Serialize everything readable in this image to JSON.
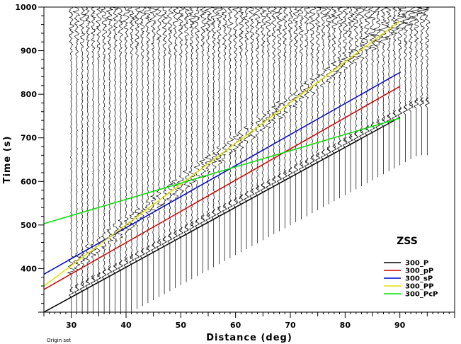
{
  "chart_data": {
    "type": "line",
    "title": "",
    "xlabel": "Distance (deg)",
    "ylabel": "Time (s)",
    "xlim": [
      25,
      100
    ],
    "ylim": [
      300,
      1000
    ],
    "x_ticks": [
      30,
      40,
      50,
      60,
      70,
      80,
      90
    ],
    "y_ticks": [
      400,
      500,
      600,
      700,
      800,
      900,
      1000
    ],
    "legend_title": "ZSS",
    "legend_position": "bottom-right",
    "footnote": "Origin set",
    "series": [
      {
        "name": "300_P",
        "color": "#000000",
        "x": [
          25,
          90
        ],
        "y": [
          300,
          747
        ]
      },
      {
        "name": "300_pP",
        "color": "#d00000",
        "x": [
          25,
          90
        ],
        "y": [
          352,
          818
        ]
      },
      {
        "name": "300_sP",
        "color": "#0000d0",
        "x": [
          25,
          90
        ],
        "y": [
          387,
          850
        ]
      },
      {
        "name": "300_PP",
        "color": "#e0e000",
        "x": [
          25,
          90
        ],
        "y": [
          360,
          968
        ]
      },
      {
        "name": "300_PcP",
        "color": "#00e000",
        "x": [
          25,
          90
        ],
        "y": [
          503,
          745
        ]
      }
    ],
    "seismograms": {
      "distance_start": 30,
      "distance_end": 95,
      "distance_step": 1
    }
  }
}
